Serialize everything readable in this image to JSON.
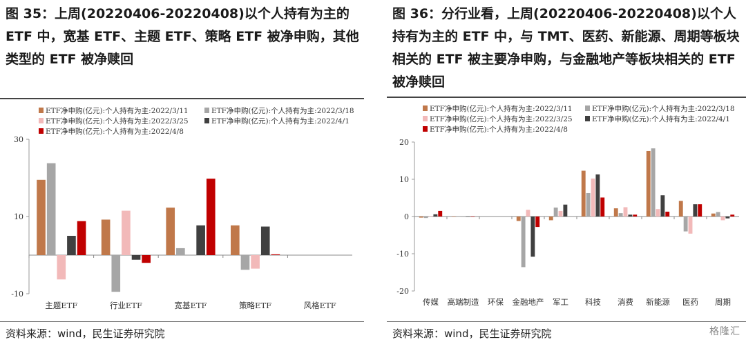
{
  "left": {
    "title": "图 35：上周(20220406-20220408)以个人持有为主的 ETF 中，宽基 ETF、主题 ETF、策略 ETF 被净申购，其他类型的 ETF 被净赎回",
    "source": "资料来源：wind，民生证券研究院"
  },
  "right": {
    "title": "图 36：分行业看，上周(20220406-20220408)以个人持有为主的 ETF 中，与 TMT、医药、新能源、周期等板块相关的 ETF 被主要净申购，与金融地产等板块相关的 ETF 被净赎回",
    "source": "资料来源：wind，民生证券研究院"
  },
  "watermark": "格隆汇",
  "chart_data": [
    {
      "type": "bar",
      "categories": [
        "主题ETF",
        "行业ETF",
        "宽基ETF",
        "策略ETF",
        "风格ETF"
      ],
      "ylim": [
        -10,
        30
      ],
      "yticks": [
        30,
        10,
        -10
      ],
      "series": [
        {
          "name": "ETF净申购(亿元):个人持有为主:2022/3/11",
          "color": "#c0784a",
          "values": [
            19.5,
            9.2,
            12.3,
            7.7,
            0
          ]
        },
        {
          "name": "ETF净申购(亿元):个人持有为主:2022/3/18",
          "color": "#a6a6a6",
          "values": [
            23.8,
            -9.5,
            1.8,
            -3.8,
            0
          ]
        },
        {
          "name": "ETF净申购(亿元):个人持有为主:2022/3/25",
          "color": "#f2b9b9",
          "values": [
            -6.3,
            11.5,
            0,
            -3.5,
            0
          ]
        },
        {
          "name": "ETF净申购(亿元):个人持有为主:2022/4/1",
          "color": "#404040",
          "values": [
            5.0,
            -1.2,
            7.7,
            7.4,
            0
          ]
        },
        {
          "name": "ETF净申购(亿元):个人持有为主:2022/4/8",
          "color": "#c00000",
          "values": [
            8.8,
            -2.0,
            19.8,
            0.2,
            0
          ]
        }
      ]
    },
    {
      "type": "bar",
      "categories": [
        "传媒",
        "高端制造",
        "环保",
        "金融地产",
        "军工",
        "科技",
        "消费",
        "新能源",
        "医药",
        "周期"
      ],
      "ylim": [
        -20,
        20
      ],
      "yticks": [
        20,
        10,
        0,
        -10,
        -20
      ],
      "series": [
        {
          "name": "ETF净申购(亿元):个人持有为主:2022/3/11",
          "color": "#c0784a",
          "values": [
            -0.3,
            -0.1,
            0,
            -1.2,
            -1.0,
            12.3,
            2.2,
            17.6,
            4.2,
            0.8
          ]
        },
        {
          "name": "ETF净申购(亿元):个人持有为主:2022/3/18",
          "color": "#a6a6a6",
          "values": [
            -0.4,
            -0.1,
            0,
            -13.6,
            2.4,
            6.3,
            0.9,
            18.3,
            -4.0,
            1.2
          ]
        },
        {
          "name": "ETF净申购(亿元):个人持有为主:2022/3/25",
          "color": "#f2b9b9",
          "values": [
            0.1,
            0,
            0,
            1.8,
            1.5,
            10.2,
            2.5,
            2.0,
            -4.6,
            -1.0
          ]
        },
        {
          "name": "ETF净申购(亿元):个人持有为主:2022/4/1",
          "color": "#404040",
          "values": [
            0.6,
            -0.1,
            0,
            -10.8,
            3.2,
            11.3,
            0.5,
            5.7,
            3.3,
            -0.5
          ]
        },
        {
          "name": "ETF净申购(亿元):个人持有为主:2022/4/8",
          "color": "#c00000",
          "values": [
            1.5,
            -0.1,
            0,
            -2.8,
            0,
            5.1,
            0.5,
            1.3,
            3.3,
            0.5
          ]
        }
      ]
    }
  ]
}
